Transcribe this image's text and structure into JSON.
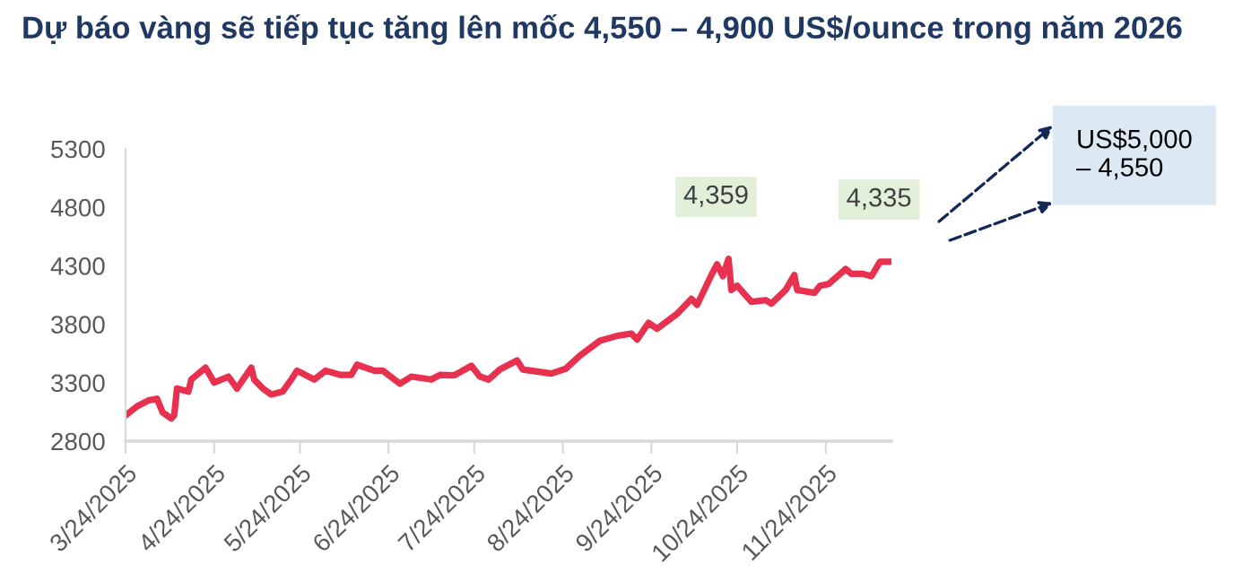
{
  "chart_data": {
    "type": "line",
    "title": "Dự báo vàng sẽ tiếp tục tăng lên mốc 4,550 – 4,900 US$/ounce trong năm 2026",
    "x": [
      "2025-03-24",
      "2025-03-28",
      "2025-04-01",
      "2025-04-04",
      "2025-04-06",
      "2025-04-09",
      "2025-04-10",
      "2025-04-11",
      "2025-04-15",
      "2025-04-16",
      "2025-04-21",
      "2025-04-24",
      "2025-04-29",
      "2025-05-02",
      "2025-05-07",
      "2025-05-08",
      "2025-05-11",
      "2025-05-14",
      "2025-05-18",
      "2025-05-21",
      "2025-05-23",
      "2025-05-29",
      "2025-06-02",
      "2025-06-07",
      "2025-06-11",
      "2025-06-13",
      "2025-06-19",
      "2025-06-22",
      "2025-06-28",
      "2025-07-02",
      "2025-07-09",
      "2025-07-12",
      "2025-07-17",
      "2025-07-23",
      "2025-07-26",
      "2025-07-29",
      "2025-08-02",
      "2025-08-08",
      "2025-08-10",
      "2025-08-20",
      "2025-08-25",
      "2025-08-30",
      "2025-09-06",
      "2025-09-12",
      "2025-09-17",
      "2025-09-19",
      "2025-09-23",
      "2025-09-26",
      "2025-10-03",
      "2025-10-08",
      "2025-10-10",
      "2025-10-15",
      "2025-10-17",
      "2025-10-19",
      "2025-10-21",
      "2025-10-22",
      "2025-10-24",
      "2025-10-29",
      "2025-11-03",
      "2025-11-05",
      "2025-11-10",
      "2025-11-13",
      "2025-11-14",
      "2025-11-20",
      "2025-11-22",
      "2025-11-25",
      "2025-12-01",
      "2025-12-03",
      "2025-12-07",
      "2025-12-10",
      "2025-12-13",
      "2025-12-17"
    ],
    "series": [
      {
        "color": "#e8304f",
        "values": [
          3020,
          3097,
          3148,
          3163,
          3045,
          2994,
          3020,
          3250,
          3224,
          3327,
          3429,
          3301,
          3352,
          3250,
          3429,
          3327,
          3250,
          3199,
          3224,
          3327,
          3403,
          3327,
          3403,
          3367,
          3367,
          3454,
          3403,
          3403,
          3291,
          3352,
          3327,
          3367,
          3362,
          3444,
          3352,
          3327,
          3413,
          3490,
          3413,
          3378,
          3419,
          3531,
          3659,
          3700,
          3720,
          3669,
          3812,
          3761,
          3889,
          4017,
          3966,
          4221,
          4313,
          4211,
          4359,
          4093,
          4129,
          3991,
          4006,
          3976,
          4093,
          4221,
          4093,
          4068,
          4129,
          4144,
          4272,
          4231,
          4231,
          4211,
          4334,
          4335
        ]
      }
    ],
    "xlim": [
      "2025-03-24",
      "2025-12-17"
    ],
    "xticks": [
      {
        "value": "2025-03-24",
        "label": "3/24/2025"
      },
      {
        "value": "2025-04-24",
        "label": "4/24/2025"
      },
      {
        "value": "2025-05-24",
        "label": "5/24/2025"
      },
      {
        "value": "2025-06-24",
        "label": "6/24/2025"
      },
      {
        "value": "2025-07-24",
        "label": "7/24/2025"
      },
      {
        "value": "2025-08-24",
        "label": "8/24/2025"
      },
      {
        "value": "2025-09-24",
        "label": "9/24/2025"
      },
      {
        "value": "2025-10-24",
        "label": "10/24/2025"
      },
      {
        "value": "2025-11-24",
        "label": "11/24/2025"
      }
    ],
    "ylim": [
      2800,
      5300
    ],
    "yticks": [
      2800,
      3300,
      3800,
      4300,
      4800,
      5300
    ],
    "grid": false,
    "legend": false,
    "marker": "none",
    "line_style": "solid",
    "annotations": [
      {
        "text": "4,359",
        "x": "2025-10-21",
        "y": 4359
      },
      {
        "text": "4,335",
        "x": "2025-12-17",
        "y": 4335
      },
      "US$5,000\n– 4,550"
    ]
  }
}
